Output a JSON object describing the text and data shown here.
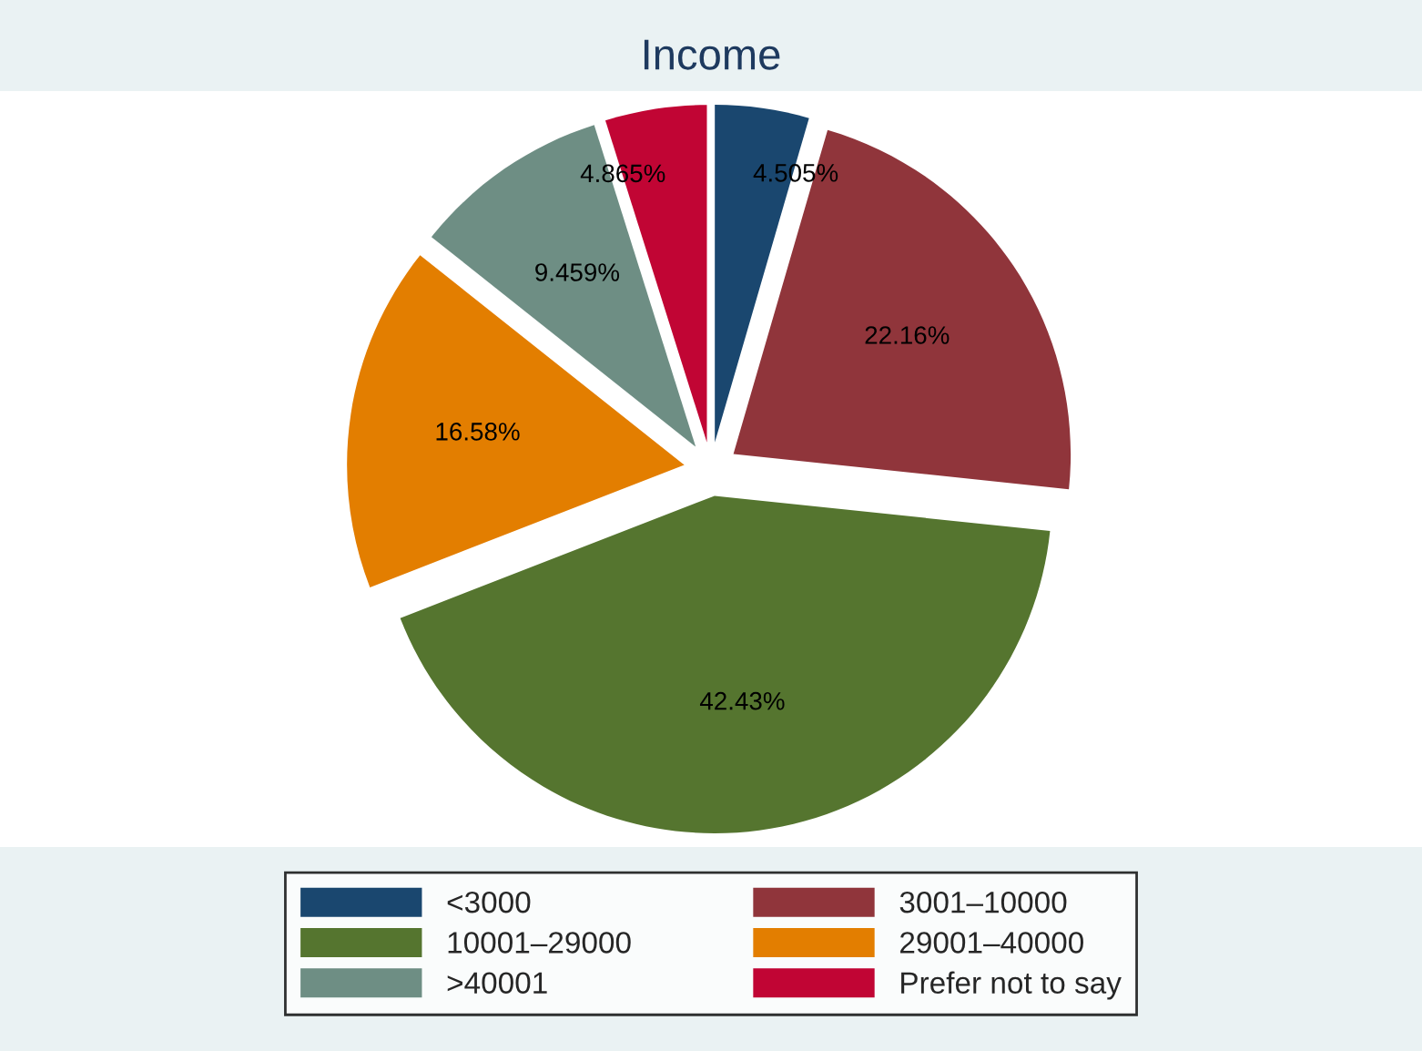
{
  "chart_data": {
    "type": "pie",
    "title": "Income",
    "categories": [
      "<3000",
      "3001–10000",
      "10001–29000",
      "29001–40000",
      ">40001",
      "Prefer not to say"
    ],
    "values": [
      4.505,
      22.16,
      42.43,
      16.58,
      9.459,
      4.865
    ],
    "colors": [
      "#1a476f",
      "#90353b",
      "#55752f",
      "#e37e00",
      "#6e8e84",
      "#c10534"
    ],
    "value_labels": [
      "4.505%",
      "22.16%",
      "42.43%",
      "16.58%",
      "9.459%",
      "4.865%"
    ],
    "legend": "bottom"
  }
}
